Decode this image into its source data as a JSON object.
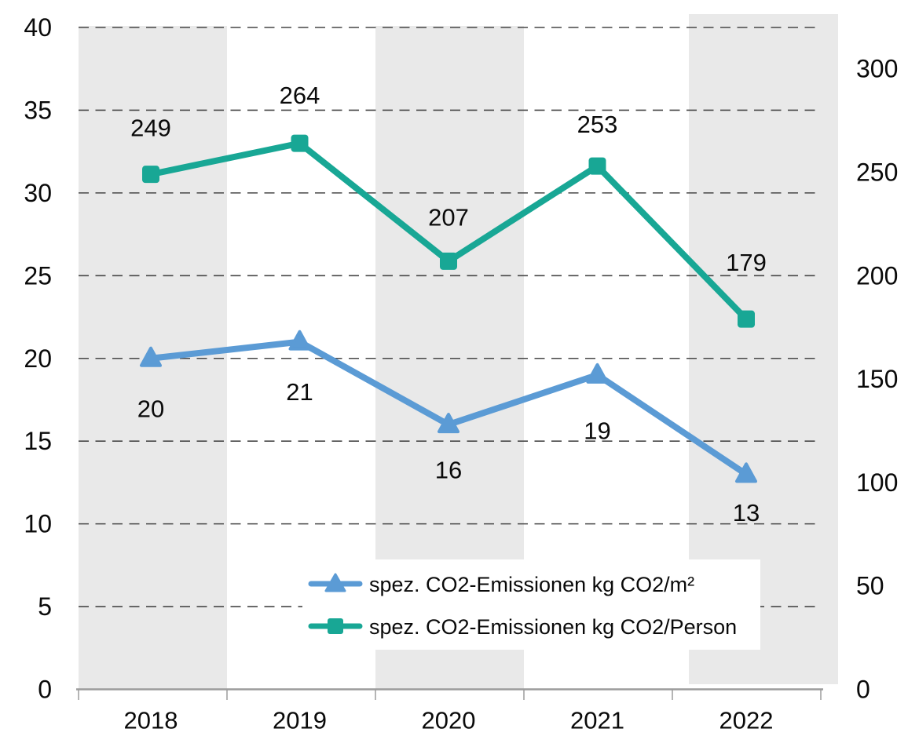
{
  "chart_data": {
    "type": "line",
    "title": "",
    "categories": [
      "2018",
      "2019",
      "2020",
      "2021",
      "2022"
    ],
    "series": [
      {
        "name": "spez. CO2-Emissionen kg CO2/m²",
        "axis": "left",
        "marker": "triangle",
        "color": "#5b9bd5",
        "values": [
          20,
          21,
          16,
          19,
          13
        ],
        "label_dy": [
          64,
          64,
          58,
          71,
          49
        ]
      },
      {
        "name": "spez. CO2-Emissionen kg CO2/Person",
        "axis": "right",
        "marker": "square",
        "color": "#18a795",
        "values": [
          249,
          264,
          207,
          253,
          179
        ],
        "label_dy": [
          -59,
          -61,
          -56,
          -53,
          -72
        ]
      }
    ],
    "left_axis": {
      "min": 0,
      "max": 40,
      "step": 5,
      "ticks": [
        0,
        5,
        10,
        15,
        20,
        25,
        30,
        35,
        40
      ]
    },
    "right_axis": {
      "min": 0,
      "max": 320,
      "step": 50,
      "ticks": [
        0,
        50,
        100,
        150,
        200,
        250,
        300
      ]
    },
    "grid": "horizontal-dashed",
    "banded_columns": [
      "2018",
      "2020",
      "2022"
    ],
    "legend_position": "inside-bottom-center",
    "colors": {
      "band": "#e9e9e9",
      "gridline": "#474747",
      "axis_line": "#9c9c9c",
      "text": "#0a0a0a",
      "legend_background": "#ffffff"
    }
  }
}
